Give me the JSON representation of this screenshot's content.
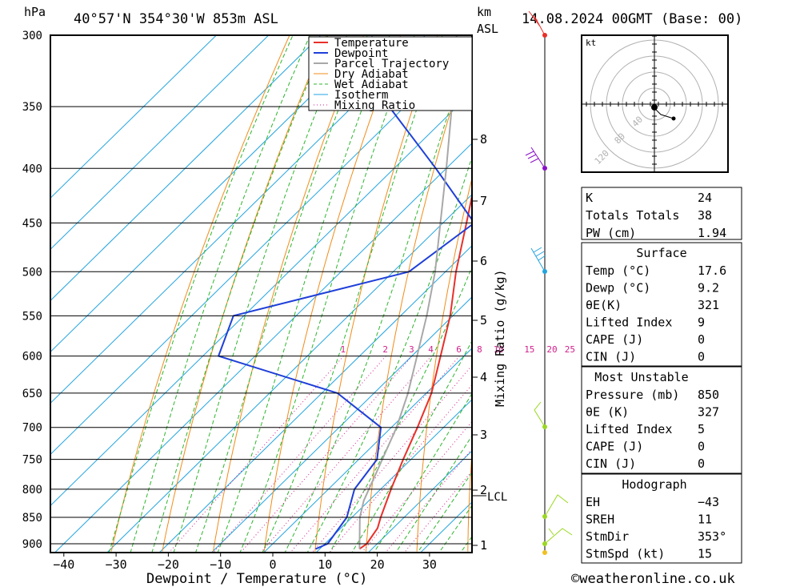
{
  "header": {
    "hpa_label": "hPa",
    "location": "40°57'N  354°30'W  853m  ASL",
    "km_label": "km",
    "asl_label": "ASL",
    "datetime": "14.08.2024  00GMT  (Base: 00)"
  },
  "chart_data": {
    "type": "line",
    "xlabel": "Dewpoint / Temperature (°C)",
    "ylabel": "hPa",
    "mixing_ratio_axis_label": "Mixing Ratio (g/kg)",
    "x_ticks": [
      "−40",
      "−30",
      "−20",
      "−10",
      "0",
      "10",
      "20",
      "30"
    ],
    "pressure_levels": [
      300,
      350,
      400,
      450,
      500,
      550,
      600,
      650,
      700,
      750,
      800,
      850,
      900
    ],
    "pressure_labels": [
      "300",
      "350",
      "400",
      "450",
      "500",
      "550",
      "600",
      "650",
      "700",
      "750",
      "800",
      "850",
      "900"
    ],
    "km_ticks": [
      "8",
      "7",
      "6",
      "5",
      "4",
      "3",
      "2",
      "1"
    ],
    "lcl_label": "LCL",
    "mixing_ratio_labels": [
      "1",
      "2",
      "3",
      "4",
      "6",
      "8",
      "10",
      "15",
      "20",
      "25"
    ],
    "legend": [
      "Temperature",
      "Dewpoint",
      "Parcel Trajectory",
      "Dry Adiabat",
      "Wet Adiabat",
      "Isotherm",
      "Mixing Ratio"
    ],
    "legend_position": "top-right",
    "series": [
      {
        "name": "Temperature",
        "color": "#e8302a",
        "points": [
          [
            910,
            17.6
          ],
          [
            900,
            18.0
          ],
          [
            870,
            17.0
          ],
          [
            850,
            15.5
          ],
          [
            800,
            12.0
          ],
          [
            750,
            8.5
          ],
          [
            700,
            5.0
          ],
          [
            650,
            1.0
          ],
          [
            600,
            -4.5
          ],
          [
            550,
            -10.5
          ],
          [
            500,
            -18.0
          ],
          [
            450,
            -25.5
          ],
          [
            400,
            -34.0
          ],
          [
            350,
            -44.0
          ],
          [
            300,
            -52.0
          ]
        ]
      },
      {
        "name": "Dewpoint",
        "color": "#1f3fd8",
        "points": [
          [
            910,
            9.2
          ],
          [
            900,
            10.5
          ],
          [
            850,
            9.0
          ],
          [
            800,
            5.0
          ],
          [
            750,
            3.5
          ],
          [
            700,
            -2.0
          ],
          [
            650,
            -17.0
          ],
          [
            600,
            -47.0
          ],
          [
            550,
            -52.0
          ],
          [
            500,
            -27.0
          ],
          [
            450,
            -24.0
          ],
          [
            400,
            -42.0
          ],
          [
            350,
            -63.0
          ],
          [
            300,
            -55.0
          ]
        ]
      },
      {
        "name": "Parcel Trajectory",
        "color": "#a8a8a8",
        "points": [
          [
            910,
            17.6
          ],
          [
            850,
            11.5
          ],
          [
            820,
            9.0
          ],
          [
            750,
            4.5
          ],
          [
            700,
            1.0
          ],
          [
            650,
            -3.5
          ],
          [
            600,
            -9.0
          ],
          [
            550,
            -15.0
          ],
          [
            500,
            -22.0
          ],
          [
            450,
            -30.5
          ],
          [
            400,
            -40.0
          ],
          [
            350,
            -51.0
          ],
          [
            300,
            -64.0
          ]
        ]
      }
    ]
  },
  "hodograph": {
    "unit": "kt",
    "ring_labels": [
      "40",
      "80",
      "120"
    ]
  },
  "indices": {
    "rows": [
      {
        "label": "K",
        "value": "24"
      },
      {
        "label": "Totals Totals",
        "value": "38"
      },
      {
        "label": "PW (cm)",
        "value": "1.94"
      }
    ]
  },
  "surface": {
    "title": "Surface",
    "rows": [
      {
        "label": "Temp (°C)",
        "value": "17.6"
      },
      {
        "label": "Dewp (°C)",
        "value": "9.2"
      },
      {
        "label": "θE(K)",
        "value": "321"
      },
      {
        "label": "Lifted Index",
        "value": "9"
      },
      {
        "label": "CAPE (J)",
        "value": "0"
      },
      {
        "label": "CIN (J)",
        "value": "0"
      }
    ]
  },
  "most_unstable": {
    "title": "Most Unstable",
    "rows": [
      {
        "label": "Pressure (mb)",
        "value": "850"
      },
      {
        "label": "θE (K)",
        "value": "327"
      },
      {
        "label": "Lifted Index",
        "value": "5"
      },
      {
        "label": "CAPE (J)",
        "value": "0"
      },
      {
        "label": "CIN (J)",
        "value": "0"
      }
    ]
  },
  "hodograph_table": {
    "title": "Hodograph",
    "rows": [
      {
        "label": "EH",
        "value": "−43"
      },
      {
        "label": "SREH",
        "value": "11"
      },
      {
        "label": "StmDir",
        "value": "353°"
      },
      {
        "label": "StmSpd (kt)",
        "value": "15"
      }
    ]
  },
  "footer": {
    "copyright": "©weatheronline.co.uk"
  },
  "colors": {
    "temperature": "#e8302a",
    "dewpoint": "#1f3fd8",
    "parcel": "#a8a8a8",
    "dry_adiabat": "#f08c1a",
    "wet_adiabat": "#2cb52c",
    "isotherm": "#22a4e0",
    "mixing_ratio": "#d0208c"
  }
}
